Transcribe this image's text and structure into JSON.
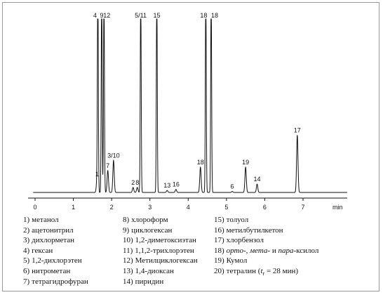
{
  "chart_data": {
    "type": "line",
    "title": "",
    "xlabel": "",
    "x_unit": "min",
    "ylabel": "",
    "xlim": [
      0,
      7.5
    ],
    "xticks": [
      0,
      1,
      2,
      3,
      4,
      5,
      6,
      7
    ],
    "grid": false,
    "baseline_color": "#111111",
    "peaks": [
      {
        "label": "1",
        "t": 1.62,
        "h": 0.08
      },
      {
        "label": "4",
        "t": 1.64,
        "h": 1.2
      },
      {
        "label": "9",
        "t": 1.74,
        "h": 1.2
      },
      {
        "label": "12",
        "t": 1.8,
        "h": 1.2
      },
      {
        "label": "7",
        "t": 1.9,
        "h": 0.13
      },
      {
        "label": "3/10",
        "t": 2.05,
        "h": 0.19
      },
      {
        "label": "2",
        "t": 2.56,
        "h": 0.03
      },
      {
        "label": "8",
        "t": 2.67,
        "h": 0.03
      },
      {
        "label": "5/11",
        "t": 2.76,
        "h": 1.2
      },
      {
        "label": "15",
        "t": 3.18,
        "h": 1.2
      },
      {
        "label": "13",
        "t": 3.45,
        "h": 0.012
      },
      {
        "label": "16",
        "t": 3.68,
        "h": 0.018
      },
      {
        "label": "18",
        "t": 4.32,
        "h": 0.15
      },
      {
        "label": "18",
        "t": 4.46,
        "h": 1.2
      },
      {
        "label": "18",
        "t": 4.6,
        "h": 1.2
      },
      {
        "label": "6",
        "t": 5.15,
        "h": 0.006
      },
      {
        "label": "19",
        "t": 5.5,
        "h": 0.15
      },
      {
        "label": "14",
        "t": 5.8,
        "h": 0.05
      },
      {
        "label": "17",
        "t": 6.85,
        "h": 0.34
      }
    ]
  },
  "legend": {
    "col1": [
      {
        "num": "1)",
        "name": "метанол"
      },
      {
        "num": "2)",
        "name": "ацетонитрил"
      },
      {
        "num": "3)",
        "name": "дихлорметан"
      },
      {
        "num": "4)",
        "name": "гексан"
      },
      {
        "num": "5)",
        "name": "1,2-дихлорэтен"
      },
      {
        "num": "6)",
        "name": "нитрометан"
      },
      {
        "num": "7)",
        "name": "тетрагидрофуран"
      }
    ],
    "col2": [
      {
        "num": "8)",
        "name": "хлороформ"
      },
      {
        "num": "9)",
        "name": "циклогексан"
      },
      {
        "num": "10)",
        "name": "1,2-диметоксиэтан"
      },
      {
        "num": "11)",
        "name": "1,1,2-трихлорэтен"
      },
      {
        "num": "12)",
        "name": "Метилциклогексан"
      },
      {
        "num": "13)",
        "name": "1,4-диоксан"
      },
      {
        "num": "14)",
        "name": "пиридин"
      }
    ],
    "col3_a": [
      {
        "num": "15)",
        "name": "толуол"
      },
      {
        "num": "16)",
        "name": "метилбутилкетон"
      },
      {
        "num": "17)",
        "name": "хлорбензол"
      }
    ],
    "item18": {
      "num": "18)",
      "ortho": "орто-,",
      "meta": "мета-",
      "and": "и",
      "para": "пара-",
      "rest": "ксилол"
    },
    "item19": {
      "num": "19)",
      "name": "Кумол"
    },
    "item20": {
      "num": "20)",
      "name": "тетралин (",
      "tsym": "t",
      "tsub": "r",
      "rest": " = 28 мин)"
    }
  }
}
